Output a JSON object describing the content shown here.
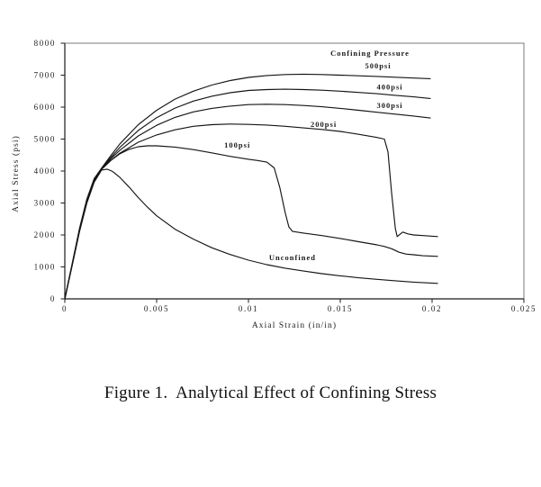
{
  "caption": "Figure 1.  Analytical Effect of Confining Stress",
  "chart_data": {
    "type": "line",
    "title": "",
    "xlabel": "Axial Strain (in/in)",
    "ylabel": "Axial Stress (psi)",
    "xlim": [
      0,
      0.025
    ],
    "ylim": [
      0,
      8000
    ],
    "grid": false,
    "x_ticks": [
      0,
      0.005,
      0.01,
      0.015,
      0.02,
      0.025
    ],
    "x_tick_labels": [
      "0",
      "0.005",
      "0.01",
      "0.015",
      "0.02",
      "0.025"
    ],
    "y_ticks": [
      0,
      1000,
      2000,
      3000,
      4000,
      5000,
      6000,
      7000,
      8000
    ],
    "legend_title": {
      "text": "Confining Pressure",
      "x": 0.01662,
      "y": 7690
    },
    "annotations": [
      {
        "text": "500psi",
        "x": 0.01706,
        "y": 7290
      },
      {
        "text": "400psi",
        "x": 0.0177,
        "y": 6640
      },
      {
        "text": "300psi",
        "x": 0.0177,
        "y": 6060
      },
      {
        "text": "200psi",
        "x": 0.0141,
        "y": 5460
      },
      {
        "text": "100psi",
        "x": 0.0094,
        "y": 4820
      },
      {
        "text": "Unconfined",
        "x": 0.0124,
        "y": 1290
      }
    ],
    "series": [
      {
        "name": "500psi",
        "points": [
          [
            0,
            0
          ],
          [
            0.0004,
            1100
          ],
          [
            0.0008,
            2200
          ],
          [
            0.0012,
            3120
          ],
          [
            0.0016,
            3760
          ],
          [
            0.002,
            4090
          ],
          [
            0.0025,
            4480
          ],
          [
            0.003,
            4850
          ],
          [
            0.004,
            5450
          ],
          [
            0.005,
            5900
          ],
          [
            0.006,
            6250
          ],
          [
            0.007,
            6500
          ],
          [
            0.008,
            6690
          ],
          [
            0.009,
            6830
          ],
          [
            0.01,
            6930
          ],
          [
            0.011,
            6990
          ],
          [
            0.012,
            7020
          ],
          [
            0.013,
            7030
          ],
          [
            0.014,
            7020
          ],
          [
            0.015,
            7000
          ],
          [
            0.016,
            6980
          ],
          [
            0.017,
            6960
          ],
          [
            0.018,
            6935
          ],
          [
            0.019,
            6910
          ],
          [
            0.0199,
            6890
          ]
        ]
      },
      {
        "name": "400psi",
        "points": [
          [
            0,
            0
          ],
          [
            0.0004,
            1090
          ],
          [
            0.0008,
            2180
          ],
          [
            0.0012,
            3100
          ],
          [
            0.0016,
            3740
          ],
          [
            0.002,
            4080
          ],
          [
            0.0025,
            4420
          ],
          [
            0.003,
            4740
          ],
          [
            0.004,
            5270
          ],
          [
            0.005,
            5670
          ],
          [
            0.006,
            5970
          ],
          [
            0.007,
            6190
          ],
          [
            0.008,
            6340
          ],
          [
            0.009,
            6450
          ],
          [
            0.01,
            6520
          ],
          [
            0.011,
            6550
          ],
          [
            0.012,
            6560
          ],
          [
            0.013,
            6550
          ],
          [
            0.014,
            6530
          ],
          [
            0.015,
            6500
          ],
          [
            0.016,
            6460
          ],
          [
            0.017,
            6420
          ],
          [
            0.018,
            6370
          ],
          [
            0.019,
            6320
          ],
          [
            0.0199,
            6270
          ]
        ]
      },
      {
        "name": "300psi",
        "points": [
          [
            0,
            0
          ],
          [
            0.0004,
            1080
          ],
          [
            0.0008,
            2160
          ],
          [
            0.0012,
            3080
          ],
          [
            0.0016,
            3720
          ],
          [
            0.002,
            4070
          ],
          [
            0.0025,
            4380
          ],
          [
            0.003,
            4650
          ],
          [
            0.004,
            5100
          ],
          [
            0.005,
            5430
          ],
          [
            0.006,
            5680
          ],
          [
            0.007,
            5850
          ],
          [
            0.008,
            5960
          ],
          [
            0.009,
            6030
          ],
          [
            0.01,
            6080
          ],
          [
            0.011,
            6090
          ],
          [
            0.012,
            6080
          ],
          [
            0.013,
            6050
          ],
          [
            0.014,
            6010
          ],
          [
            0.015,
            5960
          ],
          [
            0.016,
            5900
          ],
          [
            0.017,
            5840
          ],
          [
            0.018,
            5780
          ],
          [
            0.019,
            5720
          ],
          [
            0.0199,
            5660
          ]
        ]
      },
      {
        "name": "200psi",
        "points": [
          [
            0,
            0
          ],
          [
            0.0004,
            1070
          ],
          [
            0.0008,
            2140
          ],
          [
            0.0012,
            3060
          ],
          [
            0.0016,
            3700
          ],
          [
            0.002,
            4060
          ],
          [
            0.0025,
            4330
          ],
          [
            0.003,
            4560
          ],
          [
            0.004,
            4900
          ],
          [
            0.005,
            5130
          ],
          [
            0.006,
            5290
          ],
          [
            0.007,
            5400
          ],
          [
            0.008,
            5450
          ],
          [
            0.009,
            5470
          ],
          [
            0.01,
            5460
          ],
          [
            0.011,
            5440
          ],
          [
            0.012,
            5400
          ],
          [
            0.013,
            5350
          ],
          [
            0.014,
            5300
          ],
          [
            0.015,
            5240
          ],
          [
            0.016,
            5150
          ],
          [
            0.017,
            5050
          ],
          [
            0.0174,
            5000
          ],
          [
            0.0176,
            4600
          ],
          [
            0.0178,
            3300
          ],
          [
            0.018,
            2200
          ],
          [
            0.0181,
            1950
          ],
          [
            0.0184,
            2090
          ],
          [
            0.0187,
            2030
          ],
          [
            0.019,
            2000
          ],
          [
            0.0195,
            1980
          ],
          [
            0.0203,
            1950
          ]
        ]
      },
      {
        "name": "100psi",
        "points": [
          [
            0,
            0
          ],
          [
            0.0004,
            1060
          ],
          [
            0.0008,
            2120
          ],
          [
            0.0012,
            3030
          ],
          [
            0.0016,
            3680
          ],
          [
            0.002,
            4050
          ],
          [
            0.0025,
            4330
          ],
          [
            0.003,
            4540
          ],
          [
            0.0035,
            4680
          ],
          [
            0.004,
            4760
          ],
          [
            0.0045,
            4790
          ],
          [
            0.005,
            4790
          ],
          [
            0.006,
            4750
          ],
          [
            0.007,
            4670
          ],
          [
            0.008,
            4570
          ],
          [
            0.009,
            4460
          ],
          [
            0.01,
            4370
          ],
          [
            0.0105,
            4330
          ],
          [
            0.011,
            4280
          ],
          [
            0.0114,
            4100
          ],
          [
            0.0117,
            3500
          ],
          [
            0.012,
            2700
          ],
          [
            0.0122,
            2250
          ],
          [
            0.0124,
            2110
          ],
          [
            0.013,
            2060
          ],
          [
            0.014,
            1980
          ],
          [
            0.015,
            1890
          ],
          [
            0.016,
            1790
          ],
          [
            0.017,
            1690
          ],
          [
            0.0174,
            1640
          ],
          [
            0.0178,
            1570
          ],
          [
            0.0182,
            1460
          ],
          [
            0.0186,
            1400
          ],
          [
            0.019,
            1380
          ],
          [
            0.0195,
            1350
          ],
          [
            0.0203,
            1330
          ]
        ]
      },
      {
        "name": "Unconfined",
        "points": [
          [
            0,
            0
          ],
          [
            0.0004,
            1050
          ],
          [
            0.0008,
            2100
          ],
          [
            0.0012,
            3000
          ],
          [
            0.0016,
            3650
          ],
          [
            0.002,
            4030
          ],
          [
            0.0023,
            4060
          ],
          [
            0.0026,
            3990
          ],
          [
            0.003,
            3800
          ],
          [
            0.0035,
            3500
          ],
          [
            0.004,
            3170
          ],
          [
            0.0045,
            2870
          ],
          [
            0.005,
            2600
          ],
          [
            0.006,
            2180
          ],
          [
            0.007,
            1870
          ],
          [
            0.008,
            1600
          ],
          [
            0.009,
            1390
          ],
          [
            0.01,
            1210
          ],
          [
            0.011,
            1070
          ],
          [
            0.012,
            960
          ],
          [
            0.013,
            870
          ],
          [
            0.014,
            790
          ],
          [
            0.015,
            720
          ],
          [
            0.016,
            660
          ],
          [
            0.017,
            610
          ],
          [
            0.018,
            565
          ],
          [
            0.019,
            525
          ],
          [
            0.0203,
            485
          ]
        ]
      }
    ]
  }
}
